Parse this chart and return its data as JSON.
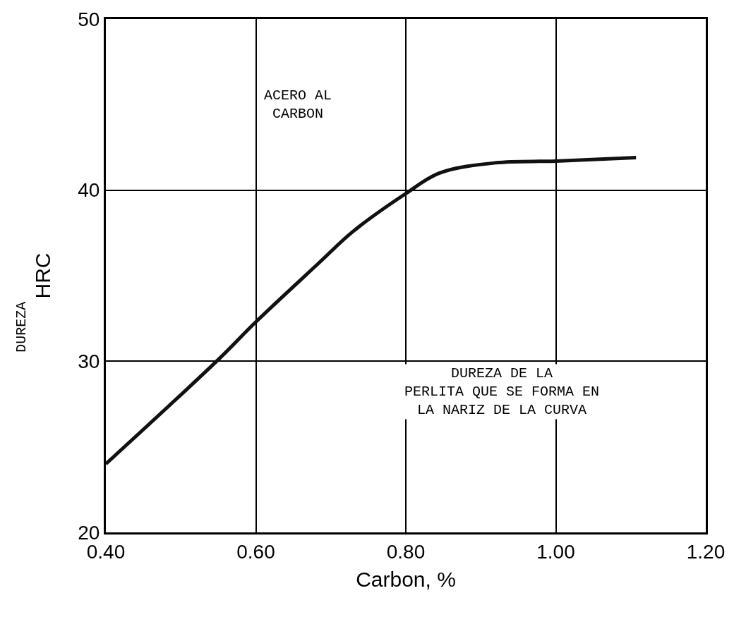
{
  "chart_data": {
    "type": "line",
    "xlabel": "Carbon, %",
    "ylabel": "HRC",
    "x": [
      0.4,
      0.55,
      0.6,
      0.683,
      0.73,
      0.8,
      0.845,
      0.92,
      1.0,
      1.107
    ],
    "values": [
      24.0,
      30.1,
      32.3,
      35.7,
      37.6,
      39.8,
      41.0,
      41.6,
      41.7,
      41.9
    ],
    "color": "#111111",
    "xlim": [
      0.4,
      1.2
    ],
    "xticks": [
      {
        "value": 0.4,
        "label": "0.40"
      },
      {
        "value": 0.6,
        "label": "0.60"
      },
      {
        "value": 0.8,
        "label": "0.80"
      },
      {
        "value": 1.0,
        "label": "1.00"
      },
      {
        "value": 1.2,
        "label": "1.20"
      }
    ],
    "ylim": [
      20,
      50
    ],
    "yticks": [
      20,
      30,
      40,
      50
    ],
    "grid": true,
    "legend": false,
    "marker": "none",
    "line_style": "solid",
    "annotations": [
      "DUREZA",
      "ACERO AL\nCARBON",
      "DUREZA DE LA\nPERLITA QUE SE FORMA EN\nLA NARIZ DE LA CURVA"
    ]
  }
}
